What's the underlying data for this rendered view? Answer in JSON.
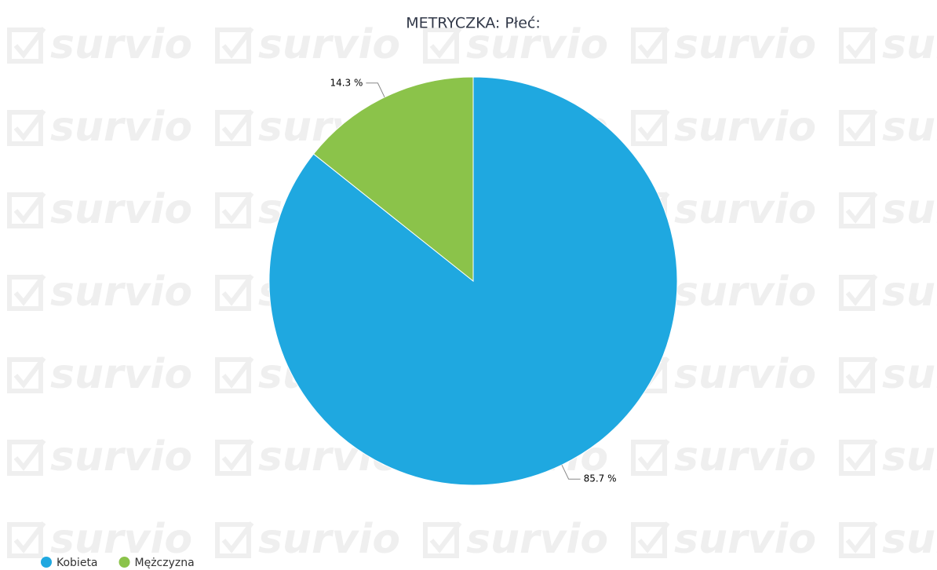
{
  "watermark": "survio",
  "chart_data": {
    "type": "pie",
    "title": "METRYCZKA: Płeć:",
    "categories": [
      "Kobieta",
      "Mężczyzna"
    ],
    "values": [
      85.7,
      14.3
    ],
    "value_labels": [
      "85.7 %",
      "14.3 %"
    ],
    "colors": [
      "#1fa8e0",
      "#8bc34a"
    ],
    "legend": "bottom-left"
  }
}
